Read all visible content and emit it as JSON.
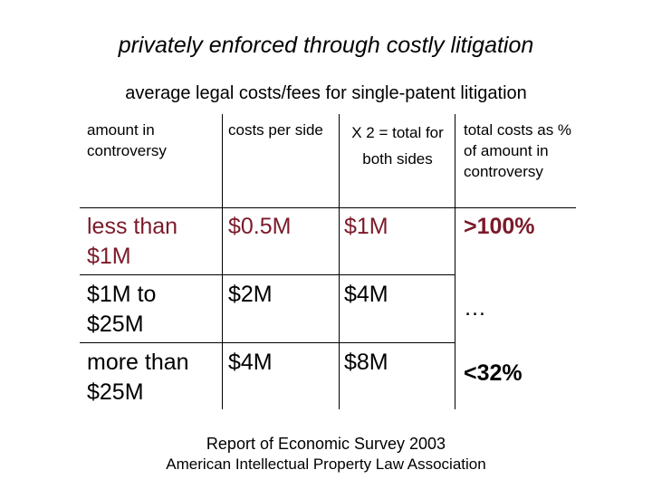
{
  "slide": {
    "title": "privately enforced through costly litigation",
    "subtitle": "average legal costs/fees for single-patent litigation"
  },
  "table": {
    "headers": {
      "amount": "amount in controversy",
      "per_side": "costs per side",
      "both_sides": "X 2 = total for both sides",
      "percent": "total costs as % of amount in controversy"
    },
    "rows": [
      {
        "amount": "less than $1M",
        "per_side": "$0.5M",
        "both_sides": "$1M",
        "percent": ">100%"
      },
      {
        "amount": "$1M to $25M",
        "per_side": "$2M",
        "both_sides": "$4M",
        "percent": "…"
      },
      {
        "amount": "more than $25M",
        "per_side": "$4M",
        "both_sides": "$8M",
        "percent": "<32%"
      }
    ]
  },
  "source": {
    "line1": "Report of Economic Survey 2003",
    "line2": "American Intellectual Property Law Association"
  },
  "colors": {
    "accent_text": "#7b1a2a",
    "text": "#000000",
    "background": "#ffffff"
  }
}
